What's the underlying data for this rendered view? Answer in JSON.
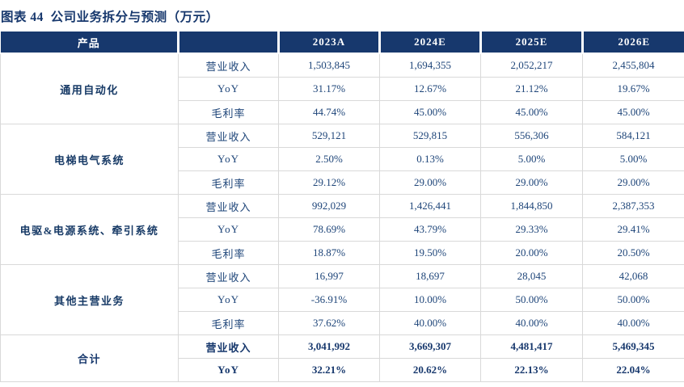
{
  "title": "图表 44  公司业务拆分与预测（万元）",
  "colors": {
    "header_bg": "#17386D",
    "header_text": "#FFFFFF",
    "body_text": "#1E4579",
    "grid_line": "#D9D9D9"
  },
  "table": {
    "columns": {
      "product": "产品",
      "metric": "",
      "years": [
        "2023A",
        "2024E",
        "2025E",
        "2026E"
      ]
    },
    "sections": [
      {
        "product": "通用自动化",
        "rows": [
          {
            "metric": "营业收入",
            "values": [
              "1,503,845",
              "1,694,355",
              "2,052,217",
              "2,455,804"
            ]
          },
          {
            "metric": "YoY",
            "values": [
              "31.17%",
              "12.67%",
              "21.12%",
              "19.67%"
            ]
          },
          {
            "metric": "毛利率",
            "values": [
              "44.74%",
              "45.00%",
              "45.00%",
              "45.00%"
            ]
          }
        ]
      },
      {
        "product": "电梯电气系统",
        "rows": [
          {
            "metric": "营业收入",
            "values": [
              "529,121",
              "529,815",
              "556,306",
              "584,121"
            ]
          },
          {
            "metric": "YoY",
            "values": [
              "2.50%",
              "0.13%",
              "5.00%",
              "5.00%"
            ]
          },
          {
            "metric": "毛利率",
            "values": [
              "29.12%",
              "29.00%",
              "29.00%",
              "29.00%"
            ]
          }
        ]
      },
      {
        "product": "电驱&电源系统、牵引系统",
        "rows": [
          {
            "metric": "营业收入",
            "values": [
              "992,029",
              "1,426,441",
              "1,844,850",
              "2,387,353"
            ]
          },
          {
            "metric": "YoY",
            "values": [
              "78.69%",
              "43.79%",
              "29.33%",
              "29.41%"
            ]
          },
          {
            "metric": "毛利率",
            "values": [
              "18.87%",
              "19.50%",
              "20.00%",
              "20.50%"
            ]
          }
        ]
      },
      {
        "product": "其他主营业务",
        "rows": [
          {
            "metric": "营业收入",
            "values": [
              "16,997",
              "18,697",
              "28,045",
              "42,068"
            ]
          },
          {
            "metric": "YoY",
            "values": [
              "-36.91%",
              "10.00%",
              "50.00%",
              "50.00%"
            ]
          },
          {
            "metric": "毛利率",
            "values": [
              "37.62%",
              "40.00%",
              "40.00%",
              "40.00%"
            ]
          }
        ]
      },
      {
        "product": "合计",
        "total": true,
        "rows": [
          {
            "metric": "营业收入",
            "values": [
              "3,041,992",
              "3,669,307",
              "4,481,417",
              "5,469,345"
            ]
          },
          {
            "metric": "YoY",
            "values": [
              "32.21%",
              "20.62%",
              "22.13%",
              "22.04%"
            ]
          }
        ]
      }
    ]
  }
}
